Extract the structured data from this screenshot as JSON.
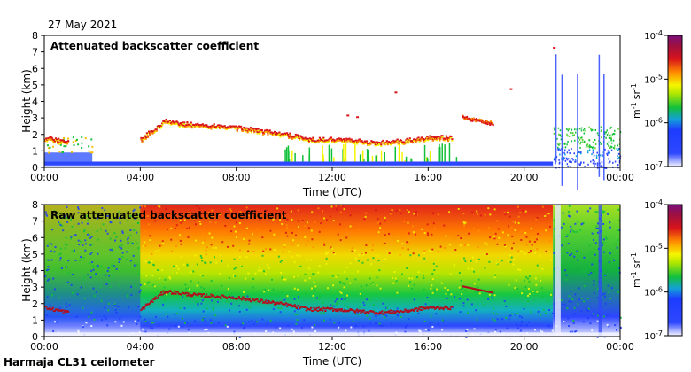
{
  "date_label": "27 May 2021",
  "footer_label": "Harmaja CL31 ceilometer",
  "colors": {
    "background": "#ffffff",
    "scale_violet": "#7a0f7a",
    "scale_red": "#d8141a",
    "scale_orange": "#ff8a00",
    "scale_yellow": "#f5f500",
    "scale_green": "#13c03a",
    "scale_blue": "#1d3cff",
    "scale_white": "#f5f5ff"
  },
  "chart_data": [
    {
      "type": "heatmap",
      "title": "Attenuated backscatter coefficient",
      "xlabel": "Time (UTC)",
      "ylabel": "Height (km)",
      "x_ticks": [
        "00:00",
        "04:00",
        "08:00",
        "12:00",
        "16:00",
        "20:00",
        "00:00"
      ],
      "y_ticks": [
        "0",
        "1",
        "2",
        "3",
        "4",
        "5",
        "6",
        "7",
        "8"
      ],
      "ylim": [
        0,
        8
      ],
      "colorbar": {
        "scale": "log",
        "ticks": [
          {
            "base": "10",
            "exp": "-4"
          },
          {
            "base": "10",
            "exp": "-5"
          },
          {
            "base": "10",
            "exp": "-6"
          },
          {
            "base": "10",
            "exp": "-7"
          }
        ],
        "label": {
          "m": "m",
          "m_exp": "-1",
          "sr": "sr",
          "sr_exp": "-1"
        }
      },
      "cloud_layer_km": [
        [
          0.0,
          1.8
        ],
        [
          1.0,
          1.5
        ],
        [
          4.0,
          1.7
        ],
        [
          5.0,
          2.8
        ],
        [
          6.0,
          2.6
        ],
        [
          7.0,
          2.5
        ],
        [
          8.0,
          2.4
        ],
        [
          9.0,
          2.2
        ],
        [
          10.0,
          2.0
        ],
        [
          11.0,
          1.7
        ],
        [
          12.0,
          1.7
        ],
        [
          13.0,
          1.6
        ],
        [
          14.0,
          1.5
        ],
        [
          15.0,
          1.6
        ],
        [
          16.0,
          1.8
        ],
        [
          17.0,
          1.8
        ]
      ]
    },
    {
      "type": "heatmap",
      "title": "Raw attenuated backscatter coefficient",
      "xlabel": "Time (UTC)",
      "ylabel": "Height (km)",
      "x_ticks": [
        "00:00",
        "04:00",
        "08:00",
        "12:00",
        "16:00",
        "20:00",
        "00:00"
      ],
      "y_ticks": [
        "0",
        "1",
        "2",
        "3",
        "4",
        "5",
        "6",
        "7",
        "8"
      ],
      "ylim": [
        0,
        8
      ],
      "colorbar": {
        "scale": "log",
        "ticks": [
          {
            "base": "10",
            "exp": "-4"
          },
          {
            "base": "10",
            "exp": "-5"
          },
          {
            "base": "10",
            "exp": "-6"
          },
          {
            "base": "10",
            "exp": "-7"
          }
        ],
        "label": {
          "m": "m",
          "m_exp": "-1",
          "sr": "sr",
          "sr_exp": "-1"
        }
      }
    }
  ]
}
